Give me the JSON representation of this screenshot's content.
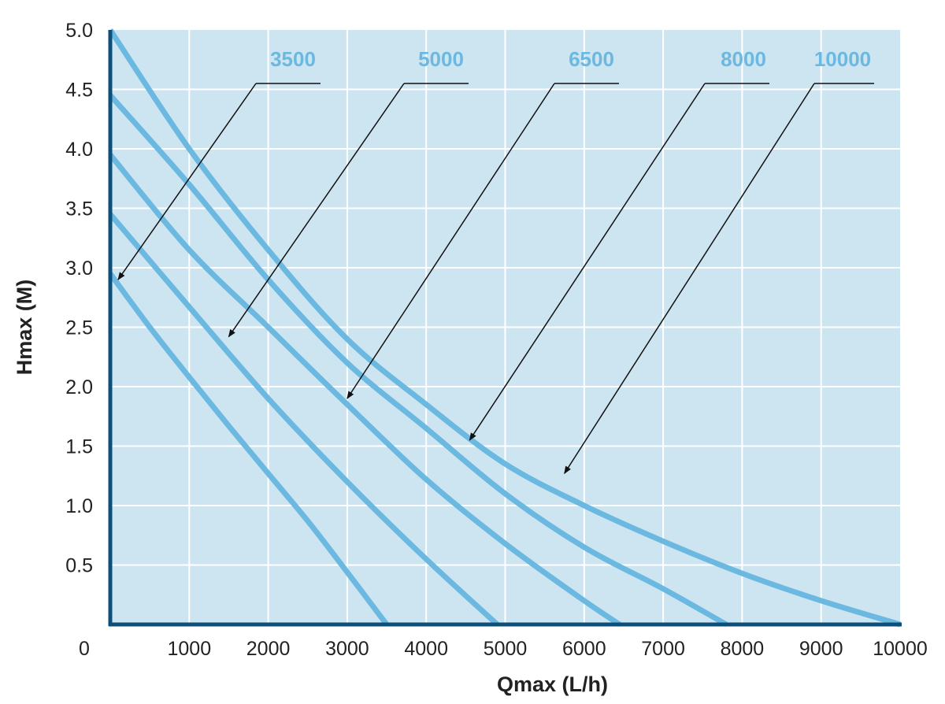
{
  "chart_data": {
    "type": "line",
    "title": "",
    "xlabel": "Qmax (L/h)",
    "ylabel": "Hmax (M)",
    "xlim": [
      0,
      10000
    ],
    "ylim": [
      0,
      5.0
    ],
    "x_ticks": [
      "0",
      "1000",
      "2000",
      "3000",
      "4000",
      "5000",
      "6000",
      "7000",
      "8000",
      "9000",
      "10000"
    ],
    "y_ticks": [
      "0.5",
      "1.0",
      "1.5",
      "2.0",
      "2.5",
      "3.0",
      "3.5",
      "4.0",
      "4.5",
      "5.0"
    ],
    "grid": true,
    "colors": {
      "plot_bg": "#cde4f1",
      "grid": "#ffffff",
      "axis": "#0d4f78",
      "curve": "#6bb8e0",
      "annotation": "#111111"
    },
    "series": [
      {
        "name": "3500",
        "x": [
          0,
          500,
          1000,
          1500,
          2000,
          2500,
          3000,
          3500
        ],
        "y": [
          2.95,
          2.5,
          2.08,
          1.67,
          1.27,
          0.87,
          0.44,
          0.0
        ]
      },
      {
        "name": "5000",
        "x": [
          0,
          1000,
          2000,
          3000,
          4000,
          4900
        ],
        "y": [
          3.45,
          2.67,
          1.9,
          1.2,
          0.55,
          0.0
        ]
      },
      {
        "name": "6500",
        "x": [
          0,
          1000,
          2000,
          3000,
          4000,
          5000,
          6000,
          6450
        ],
        "y": [
          3.95,
          3.15,
          2.5,
          1.85,
          1.22,
          0.68,
          0.2,
          0.0
        ]
      },
      {
        "name": "8000",
        "x": [
          0,
          1000,
          2000,
          3000,
          4000,
          5000,
          6000,
          7000,
          7800
        ],
        "y": [
          4.45,
          3.7,
          2.9,
          2.2,
          1.65,
          1.1,
          0.65,
          0.3,
          0.0
        ]
      },
      {
        "name": "10000",
        "x": [
          0,
          1000,
          2000,
          3000,
          4000,
          5000,
          6000,
          7000,
          8000,
          9000,
          10000
        ],
        "y": [
          5.0,
          4.0,
          3.15,
          2.4,
          1.85,
          1.35,
          1.0,
          0.7,
          0.43,
          0.2,
          0.0
        ]
      }
    ],
    "annotations": [
      {
        "label": "3500",
        "target": [
          100,
          2.9
        ]
      },
      {
        "label": "5000",
        "target": [
          1500,
          2.42
        ]
      },
      {
        "label": "6500",
        "target": [
          3000,
          1.9
        ]
      },
      {
        "label": "8000",
        "target": [
          4550,
          1.55
        ]
      },
      {
        "label": "10000",
        "target": [
          5750,
          1.27
        ]
      }
    ]
  }
}
